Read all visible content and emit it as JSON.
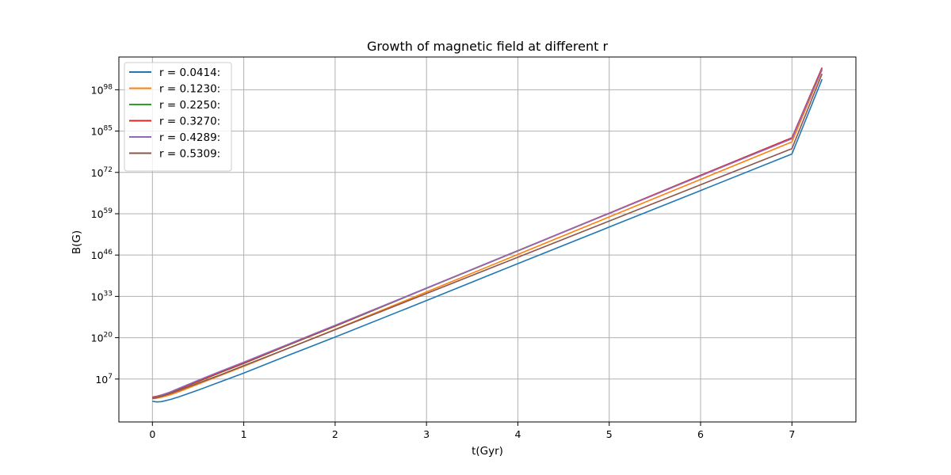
{
  "chart_data": {
    "type": "line",
    "title": "Growth of magnetic field at different r",
    "xlabel": "t(Gyr)",
    "ylabel": "B(G)",
    "xlim": [
      -0.367,
      7.7
    ],
    "ylim_exponent": [
      -6.5,
      108.3
    ],
    "y_scale": "log",
    "grid": true,
    "legend_position": "top-left",
    "x_ticks": [
      0,
      1,
      2,
      3,
      4,
      5,
      6,
      7
    ],
    "y_ticks": [
      {
        "base": "10",
        "exp": "7",
        "value": 7
      },
      {
        "base": "10",
        "exp": "20",
        "value": 20
      },
      {
        "base": "10",
        "exp": "33",
        "value": 33
      },
      {
        "base": "10",
        "exp": "46",
        "value": 46
      },
      {
        "base": "10",
        "exp": "59",
        "value": 59
      },
      {
        "base": "10",
        "exp": "72",
        "value": 72
      },
      {
        "base": "10",
        "exp": "85",
        "value": 85
      },
      {
        "base": "10",
        "exp": "98",
        "value": 98
      }
    ],
    "y_values_note": "y values are log10(B)",
    "series": [
      {
        "name": "r = 0.0414:",
        "color": "#1f77b4",
        "x": [
          0,
          0.05,
          0.1,
          0.2,
          0.3,
          0.5,
          0.75,
          1.0,
          1.5,
          2.0,
          3.0,
          4.0,
          5.0,
          6.0,
          7.0,
          7.33
        ],
        "y": [
          0.0,
          -0.2,
          -0.1,
          0.6,
          1.5,
          3.5,
          6.2,
          8.9,
          14.6,
          20.2,
          31.7,
          43.3,
          54.8,
          66.3,
          77.8,
          101.3
        ]
      },
      {
        "name": "r = 0.1230:",
        "color": "#ff7f0e",
        "x": [
          0,
          0.05,
          0.1,
          0.2,
          0.3,
          0.5,
          0.75,
          1.0,
          1.5,
          2.0,
          3.0,
          4.0,
          5.0,
          6.0,
          7.0,
          7.33
        ],
        "y": [
          0.8,
          1.0,
          1.3,
          2.1,
          3.1,
          5.4,
          8.2,
          11.0,
          16.8,
          22.6,
          34.4,
          46.2,
          58.0,
          69.8,
          81.6,
          104.2
        ]
      },
      {
        "name": "r = 0.2250:",
        "color": "#2ca02c",
        "x": [
          0,
          0.05,
          0.1,
          0.2,
          0.3,
          0.5,
          0.75,
          1.0,
          1.5,
          2.0,
          3.0,
          4.0,
          5.0,
          6.0,
          7.0,
          7.33
        ],
        "y": [
          1.2,
          1.5,
          1.9,
          2.8,
          3.9,
          6.2,
          9.1,
          11.9,
          17.8,
          23.6,
          35.5,
          47.3,
          59.1,
          71.0,
          82.8,
          104.5
        ]
      },
      {
        "name": "r = 0.3270:",
        "color": "#d62728",
        "x": [
          0,
          0.05,
          0.1,
          0.2,
          0.3,
          0.5,
          0.75,
          1.0,
          1.5,
          2.0,
          3.0,
          4.0,
          5.0,
          6.0,
          7.0,
          7.33
        ],
        "y": [
          1.3,
          1.6,
          2.0,
          2.9,
          4.0,
          6.3,
          9.2,
          12.0,
          17.9,
          23.7,
          35.6,
          47.4,
          59.2,
          71.1,
          82.9,
          105.0
        ]
      },
      {
        "name": "r = 0.4289:",
        "color": "#9467bd",
        "x": [
          0,
          0.05,
          0.1,
          0.2,
          0.3,
          0.5,
          0.75,
          1.0,
          1.5,
          2.0,
          3.0,
          4.0,
          5.0,
          6.0,
          7.0,
          7.33
        ],
        "y": [
          1.0,
          1.4,
          1.9,
          3.0,
          4.2,
          6.6,
          9.5,
          12.3,
          18.1,
          23.9,
          35.6,
          47.4,
          59.1,
          70.9,
          82.6,
          104.5
        ]
      },
      {
        "name": "r = 0.5309:",
        "color": "#8c564b",
        "x": [
          0,
          0.05,
          0.1,
          0.2,
          0.3,
          0.5,
          0.75,
          1.0,
          1.5,
          2.0,
          3.0,
          4.0,
          5.0,
          6.0,
          7.0,
          7.33
        ],
        "y": [
          0.9,
          1.2,
          1.6,
          2.5,
          3.5,
          5.7,
          8.4,
          11.2,
          16.8,
          22.5,
          33.9,
          45.3,
          56.7,
          68.1,
          79.5,
          103.0
        ]
      }
    ]
  }
}
